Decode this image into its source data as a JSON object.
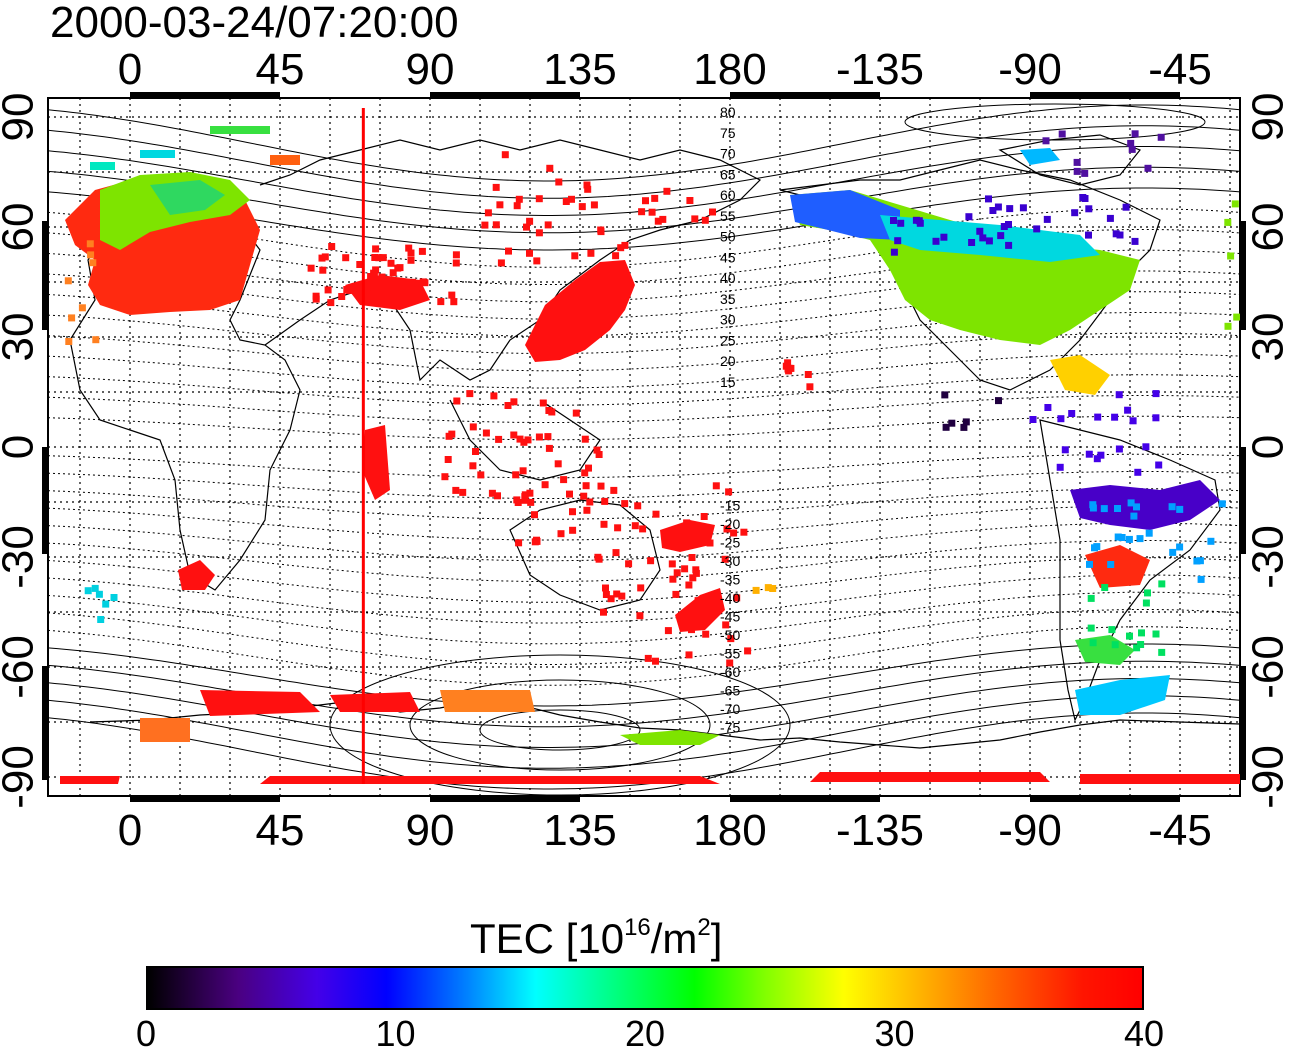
{
  "header": {
    "timestamp": "2000-03-24/07:20:00"
  },
  "map": {
    "lon_ticks_top": [
      "0",
      "45",
      "90",
      "135",
      "180",
      "-135",
      "-90",
      "-45"
    ],
    "lon_ticks_bottom": [
      "0",
      "45",
      "90",
      "135",
      "180",
      "-135",
      "-90",
      "-45"
    ],
    "lat_ticks_left": [
      "90",
      "60",
      "30",
      "0",
      "-30",
      "-60",
      "-90"
    ],
    "lat_ticks_right": [
      "90",
      "60",
      "30",
      "0",
      "-30",
      "-60",
      "-90"
    ],
    "contour_labels": [
      "80",
      "75",
      "70",
      "65",
      "60",
      "55",
      "50",
      "45",
      "40",
      "35",
      "30",
      "25",
      "20",
      "15",
      "-15",
      "-20",
      "-25",
      "-30",
      "-35",
      "-40",
      "-45",
      "-50",
      "-55",
      "-60",
      "-65",
      "-70",
      "-75"
    ],
    "meridian_longitude": 70,
    "colors": {
      "meridian": "#ff0000",
      "land_outline": "#000000"
    }
  },
  "colorbar": {
    "title_text": "TEC  [10",
    "title_exp1": "16",
    "title_mid": "/m",
    "title_exp2": "2",
    "title_end": "]",
    "tick_labels": [
      "0",
      "10",
      "20",
      "30",
      "40"
    ],
    "min": 0,
    "max": 40
  }
}
